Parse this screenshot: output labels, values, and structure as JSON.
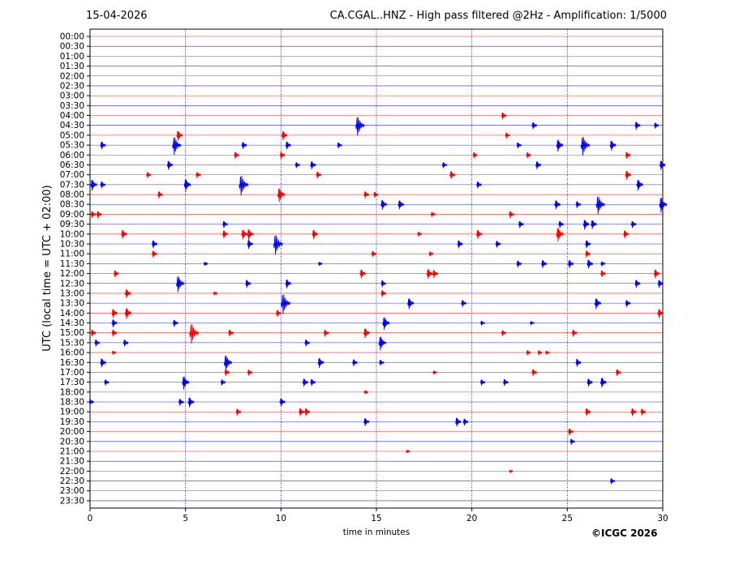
{
  "header": {
    "date": "15-04-2026",
    "station_info": "CA.CGAL..HNZ - High pass filtered @2Hz - Amplification: 1/5000"
  },
  "footer": {
    "copyright": "©ICGC 2026"
  },
  "chart_data": {
    "type": "helicorder",
    "title": "CA.CGAL..HNZ - High pass filtered @2Hz - Amplification: 1/5000",
    "date": "15-04-2026",
    "xlabel": "time in minutes",
    "ylabel": "UTC (local time = UTC + 02:00)",
    "xlim": [
      0,
      30
    ],
    "xticks": [
      0,
      5,
      10,
      15,
      20,
      25,
      30
    ],
    "grid_x": [
      5,
      10,
      15,
      20,
      25
    ],
    "row_colors": [
      "#ff0000",
      "#0000ff"
    ],
    "rows": [
      "00:00",
      "00:30",
      "01:00",
      "01:30",
      "02:00",
      "02:30",
      "03:00",
      "03:30",
      "04:00",
      "04:30",
      "05:00",
      "05:30",
      "06:00",
      "06:30",
      "07:00",
      "07:30",
      "08:00",
      "08:30",
      "09:00",
      "09:30",
      "10:00",
      "10:30",
      "11:00",
      "11:30",
      "12:00",
      "12:30",
      "13:00",
      "13:30",
      "14:00",
      "14:30",
      "15:00",
      "15:30",
      "16:00",
      "16:30",
      "17:00",
      "17:30",
      "18:00",
      "18:30",
      "19:00",
      "19:30",
      "20:00",
      "20:30",
      "21:00",
      "21:30",
      "22:00",
      "22:30",
      "23:00",
      "23:30"
    ],
    "events": [
      {
        "row": "04:00",
        "minute": 21.6,
        "amp": 0.35
      },
      {
        "row": "04:30",
        "minute": 14.0,
        "amp": 0.95
      },
      {
        "row": "04:30",
        "minute": 23.2,
        "amp": 0.35
      },
      {
        "row": "04:30",
        "minute": 28.6,
        "amp": 0.4
      },
      {
        "row": "04:30",
        "minute": 29.6,
        "amp": 0.3
      },
      {
        "row": "05:00",
        "minute": 4.6,
        "amp": 0.5
      },
      {
        "row": "05:00",
        "minute": 10.1,
        "amp": 0.45
      },
      {
        "row": "05:00",
        "minute": 21.8,
        "amp": 0.3
      },
      {
        "row": "05:30",
        "minute": 0.6,
        "amp": 0.4
      },
      {
        "row": "05:30",
        "minute": 4.4,
        "amp": 0.9
      },
      {
        "row": "05:30",
        "minute": 8.0,
        "amp": 0.35
      },
      {
        "row": "05:30",
        "minute": 10.3,
        "amp": 0.4
      },
      {
        "row": "05:30",
        "minute": 13.0,
        "amp": 0.3
      },
      {
        "row": "05:30",
        "minute": 22.4,
        "amp": 0.3
      },
      {
        "row": "05:30",
        "minute": 24.5,
        "amp": 0.6
      },
      {
        "row": "05:30",
        "minute": 25.8,
        "amp": 0.95
      },
      {
        "row": "05:30",
        "minute": 27.3,
        "amp": 0.5
      },
      {
        "row": "06:00",
        "minute": 7.6,
        "amp": 0.35
      },
      {
        "row": "06:00",
        "minute": 10.0,
        "amp": 0.35
      },
      {
        "row": "06:00",
        "minute": 20.1,
        "amp": 0.3
      },
      {
        "row": "06:00",
        "minute": 22.9,
        "amp": 0.3
      },
      {
        "row": "06:00",
        "minute": 28.1,
        "amp": 0.35
      },
      {
        "row": "06:30",
        "minute": 4.1,
        "amp": 0.45
      },
      {
        "row": "06:30",
        "minute": 10.8,
        "amp": 0.3
      },
      {
        "row": "06:30",
        "minute": 11.6,
        "amp": 0.4
      },
      {
        "row": "06:30",
        "minute": 18.5,
        "amp": 0.3
      },
      {
        "row": "06:30",
        "minute": 23.4,
        "amp": 0.4
      },
      {
        "row": "06:30",
        "minute": 29.9,
        "amp": 0.45
      },
      {
        "row": "07:00",
        "minute": 3.0,
        "amp": 0.3
      },
      {
        "row": "07:00",
        "minute": 5.6,
        "amp": 0.3
      },
      {
        "row": "07:00",
        "minute": 11.9,
        "amp": 0.35
      },
      {
        "row": "07:00",
        "minute": 18.9,
        "amp": 0.4
      },
      {
        "row": "07:00",
        "minute": 28.1,
        "amp": 0.45
      },
      {
        "row": "07:30",
        "minute": 0.1,
        "amp": 0.55
      },
      {
        "row": "07:30",
        "minute": 0.6,
        "amp": 0.35
      },
      {
        "row": "07:30",
        "minute": 5.0,
        "amp": 0.6
      },
      {
        "row": "07:30",
        "minute": 7.9,
        "amp": 1.0
      },
      {
        "row": "07:30",
        "minute": 20.3,
        "amp": 0.35
      },
      {
        "row": "07:30",
        "minute": 28.7,
        "amp": 0.55
      },
      {
        "row": "08:00",
        "minute": 3.6,
        "amp": 0.35
      },
      {
        "row": "08:00",
        "minute": 9.9,
        "amp": 0.7
      },
      {
        "row": "08:00",
        "minute": 14.4,
        "amp": 0.35
      },
      {
        "row": "08:00",
        "minute": 14.9,
        "amp": 0.3
      },
      {
        "row": "08:30",
        "minute": 15.3,
        "amp": 0.5
      },
      {
        "row": "08:30",
        "minute": 16.2,
        "amp": 0.45
      },
      {
        "row": "08:30",
        "minute": 24.4,
        "amp": 0.45
      },
      {
        "row": "08:30",
        "minute": 25.5,
        "amp": 0.35
      },
      {
        "row": "08:30",
        "minute": 26.6,
        "amp": 0.9
      },
      {
        "row": "08:30",
        "minute": 29.9,
        "amp": 0.75
      },
      {
        "row": "09:00",
        "minute": 0.1,
        "amp": 0.35
      },
      {
        "row": "09:00",
        "minute": 0.4,
        "amp": 0.35
      },
      {
        "row": "09:00",
        "minute": 22.0,
        "amp": 0.35
      },
      {
        "row": "09:00",
        "minute": 17.9,
        "amp": 0.25
      },
      {
        "row": "09:30",
        "minute": 7.0,
        "amp": 0.35
      },
      {
        "row": "09:30",
        "minute": 22.5,
        "amp": 0.35
      },
      {
        "row": "09:30",
        "minute": 24.6,
        "amp": 0.35
      },
      {
        "row": "09:30",
        "minute": 25.9,
        "amp": 0.5
      },
      {
        "row": "09:30",
        "minute": 26.3,
        "amp": 0.45
      },
      {
        "row": "09:30",
        "minute": 28.4,
        "amp": 0.35
      },
      {
        "row": "10:00",
        "minute": 1.7,
        "amp": 0.45
      },
      {
        "row": "10:00",
        "minute": 7.0,
        "amp": 0.4
      },
      {
        "row": "10:00",
        "minute": 8.0,
        "amp": 0.5
      },
      {
        "row": "10:00",
        "minute": 8.3,
        "amp": 0.55
      },
      {
        "row": "10:00",
        "minute": 11.7,
        "amp": 0.45
      },
      {
        "row": "10:00",
        "minute": 17.2,
        "amp": 0.25
      },
      {
        "row": "10:00",
        "minute": 20.3,
        "amp": 0.45
      },
      {
        "row": "10:00",
        "minute": 24.5,
        "amp": 0.7
      },
      {
        "row": "10:00",
        "minute": 28.0,
        "amp": 0.4
      },
      {
        "row": "10:30",
        "minute": 3.3,
        "amp": 0.4
      },
      {
        "row": "10:30",
        "minute": 8.3,
        "amp": 0.45
      },
      {
        "row": "10:30",
        "minute": 9.7,
        "amp": 1.0
      },
      {
        "row": "10:30",
        "minute": 19.3,
        "amp": 0.4
      },
      {
        "row": "10:30",
        "minute": 21.3,
        "amp": 0.35
      },
      {
        "row": "10:30",
        "minute": 26.0,
        "amp": 0.4
      },
      {
        "row": "11:00",
        "minute": 3.3,
        "amp": 0.35
      },
      {
        "row": "11:00",
        "minute": 14.8,
        "amp": 0.3
      },
      {
        "row": "11:00",
        "minute": 17.8,
        "amp": 0.25
      },
      {
        "row": "11:00",
        "minute": 26.0,
        "amp": 0.35
      },
      {
        "row": "11:30",
        "minute": 6.0,
        "amp": 0.2
      },
      {
        "row": "11:30",
        "minute": 12.0,
        "amp": 0.2
      },
      {
        "row": "11:30",
        "minute": 22.4,
        "amp": 0.35
      },
      {
        "row": "11:30",
        "minute": 23.7,
        "amp": 0.4
      },
      {
        "row": "11:30",
        "minute": 25.1,
        "amp": 0.4
      },
      {
        "row": "11:30",
        "minute": 26.1,
        "amp": 0.45
      },
      {
        "row": "11:30",
        "minute": 26.8,
        "amp": 0.25
      },
      {
        "row": "12:00",
        "minute": 1.3,
        "amp": 0.35
      },
      {
        "row": "12:00",
        "minute": 14.2,
        "amp": 0.45
      },
      {
        "row": "12:00",
        "minute": 17.7,
        "amp": 0.5
      },
      {
        "row": "12:00",
        "minute": 18.0,
        "amp": 0.4
      },
      {
        "row": "12:00",
        "minute": 26.8,
        "amp": 0.35
      },
      {
        "row": "12:00",
        "minute": 29.6,
        "amp": 0.45
      },
      {
        "row": "12:30",
        "minute": 4.6,
        "amp": 0.8
      },
      {
        "row": "12:30",
        "minute": 8.2,
        "amp": 0.4
      },
      {
        "row": "12:30",
        "minute": 10.3,
        "amp": 0.45
      },
      {
        "row": "12:30",
        "minute": 15.3,
        "amp": 0.35
      },
      {
        "row": "12:30",
        "minute": 28.6,
        "amp": 0.4
      },
      {
        "row": "12:30",
        "minute": 29.8,
        "amp": 0.4
      },
      {
        "row": "13:00",
        "minute": 1.9,
        "amp": 0.45
      },
      {
        "row": "13:00",
        "minute": 6.5,
        "amp": 0.2
      },
      {
        "row": "13:00",
        "minute": 15.3,
        "amp": 0.35
      },
      {
        "row": "13:30",
        "minute": 10.1,
        "amp": 1.0
      },
      {
        "row": "13:30",
        "minute": 16.7,
        "amp": 0.55
      },
      {
        "row": "13:30",
        "minute": 19.5,
        "amp": 0.35
      },
      {
        "row": "13:30",
        "minute": 26.5,
        "amp": 0.55
      },
      {
        "row": "13:30",
        "minute": 28.1,
        "amp": 0.35
      },
      {
        "row": "14:00",
        "minute": 1.2,
        "amp": 0.45
      },
      {
        "row": "14:00",
        "minute": 1.9,
        "amp": 0.55
      },
      {
        "row": "14:00",
        "minute": 9.8,
        "amp": 0.35
      },
      {
        "row": "14:00",
        "minute": 29.8,
        "amp": 0.45
      },
      {
        "row": "14:30",
        "minute": 1.2,
        "amp": 0.4
      },
      {
        "row": "14:30",
        "minute": 4.4,
        "amp": 0.35
      },
      {
        "row": "14:30",
        "minute": 15.4,
        "amp": 0.65
      },
      {
        "row": "14:30",
        "minute": 20.5,
        "amp": 0.25
      },
      {
        "row": "14:30",
        "minute": 23.1,
        "amp": 0.2
      },
      {
        "row": "15:00",
        "minute": 0.1,
        "amp": 0.35
      },
      {
        "row": "15:00",
        "minute": 1.2,
        "amp": 0.35
      },
      {
        "row": "15:00",
        "minute": 5.3,
        "amp": 1.0
      },
      {
        "row": "15:00",
        "minute": 7.3,
        "amp": 0.35
      },
      {
        "row": "15:00",
        "minute": 12.3,
        "amp": 0.35
      },
      {
        "row": "15:00",
        "minute": 14.4,
        "amp": 0.5
      },
      {
        "row": "15:00",
        "minute": 21.6,
        "amp": 0.3
      },
      {
        "row": "15:00",
        "minute": 25.3,
        "amp": 0.35
      },
      {
        "row": "15:30",
        "minute": 0.3,
        "amp": 0.35
      },
      {
        "row": "15:30",
        "minute": 1.8,
        "amp": 0.35
      },
      {
        "row": "15:30",
        "minute": 11.3,
        "amp": 0.35
      },
      {
        "row": "15:30",
        "minute": 15.2,
        "amp": 0.7
      },
      {
        "row": "16:00",
        "minute": 1.2,
        "amp": 0.2
      },
      {
        "row": "16:00",
        "minute": 22.9,
        "amp": 0.25
      },
      {
        "row": "16:00",
        "minute": 23.5,
        "amp": 0.25
      },
      {
        "row": "16:00",
        "minute": 23.9,
        "amp": 0.2
      },
      {
        "row": "16:30",
        "minute": 0.6,
        "amp": 0.45
      },
      {
        "row": "16:30",
        "minute": 7.1,
        "amp": 0.8
      },
      {
        "row": "16:30",
        "minute": 12.0,
        "amp": 0.5
      },
      {
        "row": "16:30",
        "minute": 13.8,
        "amp": 0.35
      },
      {
        "row": "16:30",
        "minute": 15.2,
        "amp": 0.3
      },
      {
        "row": "16:30",
        "minute": 25.5,
        "amp": 0.4
      },
      {
        "row": "17:00",
        "minute": 7.1,
        "amp": 0.35
      },
      {
        "row": "17:00",
        "minute": 8.3,
        "amp": 0.3
      },
      {
        "row": "17:00",
        "minute": 18.0,
        "amp": 0.2
      },
      {
        "row": "17:00",
        "minute": 23.2,
        "amp": 0.35
      },
      {
        "row": "17:00",
        "minute": 27.6,
        "amp": 0.35
      },
      {
        "row": "17:30",
        "minute": 0.8,
        "amp": 0.3
      },
      {
        "row": "17:30",
        "minute": 4.9,
        "amp": 0.65
      },
      {
        "row": "17:30",
        "minute": 6.9,
        "amp": 0.3
      },
      {
        "row": "17:30",
        "minute": 11.2,
        "amp": 0.4
      },
      {
        "row": "17:30",
        "minute": 11.6,
        "amp": 0.35
      },
      {
        "row": "17:30",
        "minute": 20.5,
        "amp": 0.3
      },
      {
        "row": "17:30",
        "minute": 21.7,
        "amp": 0.35
      },
      {
        "row": "17:30",
        "minute": 26.1,
        "amp": 0.4
      },
      {
        "row": "17:30",
        "minute": 26.8,
        "amp": 0.5
      },
      {
        "row": "18:00",
        "minute": 14.4,
        "amp": 0.2
      },
      {
        "row": "18:30",
        "minute": 0.0,
        "amp": 0.3
      },
      {
        "row": "18:30",
        "minute": 4.7,
        "amp": 0.35
      },
      {
        "row": "18:30",
        "minute": 5.2,
        "amp": 0.5
      },
      {
        "row": "18:30",
        "minute": 10.0,
        "amp": 0.4
      },
      {
        "row": "19:00",
        "minute": 7.7,
        "amp": 0.35
      },
      {
        "row": "19:00",
        "minute": 11.0,
        "amp": 0.4
      },
      {
        "row": "19:00",
        "minute": 11.3,
        "amp": 0.4
      },
      {
        "row": "19:00",
        "minute": 26.0,
        "amp": 0.4
      },
      {
        "row": "19:00",
        "minute": 28.4,
        "amp": 0.4
      },
      {
        "row": "19:00",
        "minute": 28.9,
        "amp": 0.35
      },
      {
        "row": "19:30",
        "minute": 14.4,
        "amp": 0.4
      },
      {
        "row": "19:30",
        "minute": 19.2,
        "amp": 0.45
      },
      {
        "row": "19:30",
        "minute": 19.6,
        "amp": 0.35
      },
      {
        "row": "20:00",
        "minute": 25.1,
        "amp": 0.35
      },
      {
        "row": "20:30",
        "minute": 25.2,
        "amp": 0.3
      },
      {
        "row": "21:00",
        "minute": 16.6,
        "amp": 0.15
      },
      {
        "row": "22:00",
        "minute": 22.0,
        "amp": 0.15
      },
      {
        "row": "22:30",
        "minute": 27.3,
        "amp": 0.3
      }
    ]
  }
}
